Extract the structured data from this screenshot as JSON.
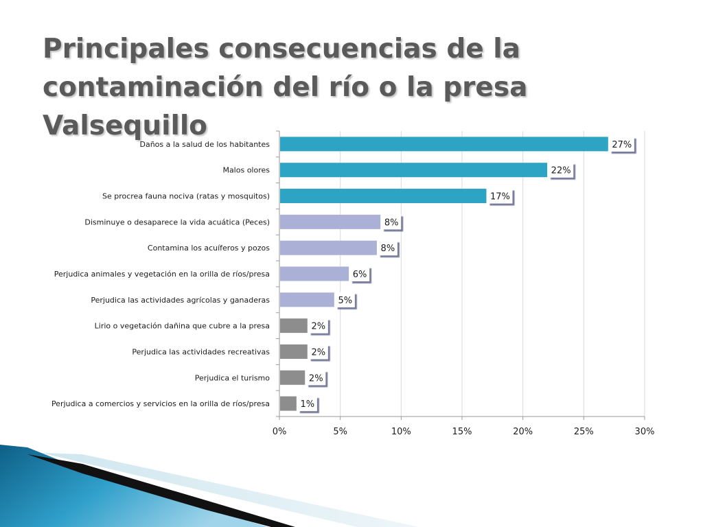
{
  "slide": {
    "title": "Principales consecuencias de la contaminación del río o la presa Valsequillo"
  },
  "colors": {
    "top_group": "#2ea4c5",
    "mid_group": "#aab0d6",
    "low_group": "#8d8d8d",
    "axis": "#9a9a9a",
    "grid": "#d9d9d9",
    "label_text": "#1a1a1a"
  },
  "chart_data": {
    "type": "bar",
    "orientation": "horizontal",
    "categories": [
      "Daños a la salud de los habitantes",
      "Malos olores",
      "Se procrea fauna nociva (ratas y mosquitos)",
      "Disminuye o desaparece la vida acuática (Peces)",
      "Contamina los acuíferos y pozos",
      "Perjudica animales y vegetación en la orilla de ríos/presa",
      "Perjudica las actividades agrícolas y ganaderas",
      "Lirio o vegetación dañina que cubre a la presa",
      "Perjudica las actividades recreativas",
      "Perjudica el turismo",
      "Perjudica a comercios y servicios en la orilla de ríos/presa"
    ],
    "values": [
      27,
      22,
      17,
      8.3,
      8,
      5.7,
      4.5,
      2.3,
      2.3,
      2.1,
      1.4
    ],
    "data_labels": [
      "27%",
      "22%",
      "17%",
      "8%",
      "8%",
      "6%",
      "5%",
      "2%",
      "2%",
      "2%",
      "1%"
    ],
    "groups": [
      "top_group",
      "top_group",
      "top_group",
      "mid_group",
      "mid_group",
      "mid_group",
      "mid_group",
      "low_group",
      "low_group",
      "low_group",
      "low_group"
    ],
    "xlim": [
      0,
      30
    ],
    "x_ticks": [
      0,
      5,
      10,
      15,
      20,
      25,
      30
    ],
    "x_tick_labels": [
      "0%",
      "5%",
      "10%",
      "15%",
      "20%",
      "25%",
      "30%"
    ],
    "grid": true,
    "legend": "none"
  }
}
